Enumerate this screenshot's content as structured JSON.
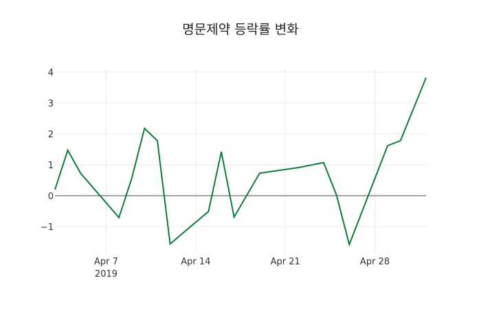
{
  "chart_data": {
    "type": "line",
    "title": "명문제약 등락률 변화",
    "xlabel": "",
    "ylabel": "",
    "x": [
      "2019-04-03",
      "2019-04-04",
      "2019-04-05",
      "2019-04-08",
      "2019-04-09",
      "2019-04-10",
      "2019-04-11",
      "2019-04-12",
      "2019-04-15",
      "2019-04-16",
      "2019-04-17",
      "2019-04-19",
      "2019-04-22",
      "2019-04-24",
      "2019-04-25",
      "2019-04-26",
      "2019-04-29",
      "2019-04-30",
      "2019-05-02"
    ],
    "series": [
      {
        "name": "등락률",
        "color": "#0a7d3a",
        "values": [
          0.2,
          1.47,
          0.73,
          -0.71,
          0.56,
          2.18,
          1.78,
          -1.56,
          -0.51,
          1.42,
          -0.69,
          0.73,
          0.91,
          1.07,
          0.02,
          -1.58,
          1.62,
          1.78,
          3.82
        ]
      }
    ],
    "yticks": [
      -1,
      0,
      1,
      2,
      3,
      4
    ],
    "ytick_labels": [
      "−1",
      "0",
      "1",
      "2",
      "3",
      "4"
    ],
    "xticks": [
      {
        "date": "2019-04-07",
        "label": "Apr 7",
        "sublabel": "2019"
      },
      {
        "date": "2019-04-14",
        "label": "Apr 14",
        "sublabel": ""
      },
      {
        "date": "2019-04-21",
        "label": "Apr 21",
        "sublabel": ""
      },
      {
        "date": "2019-04-28",
        "label": "Apr 28",
        "sublabel": ""
      }
    ],
    "ylim": [
      -1.7,
      4.1
    ],
    "xlim": [
      "2019-04-03",
      "2019-05-02"
    ],
    "grid": true,
    "legend": "none",
    "zero_line": true
  }
}
